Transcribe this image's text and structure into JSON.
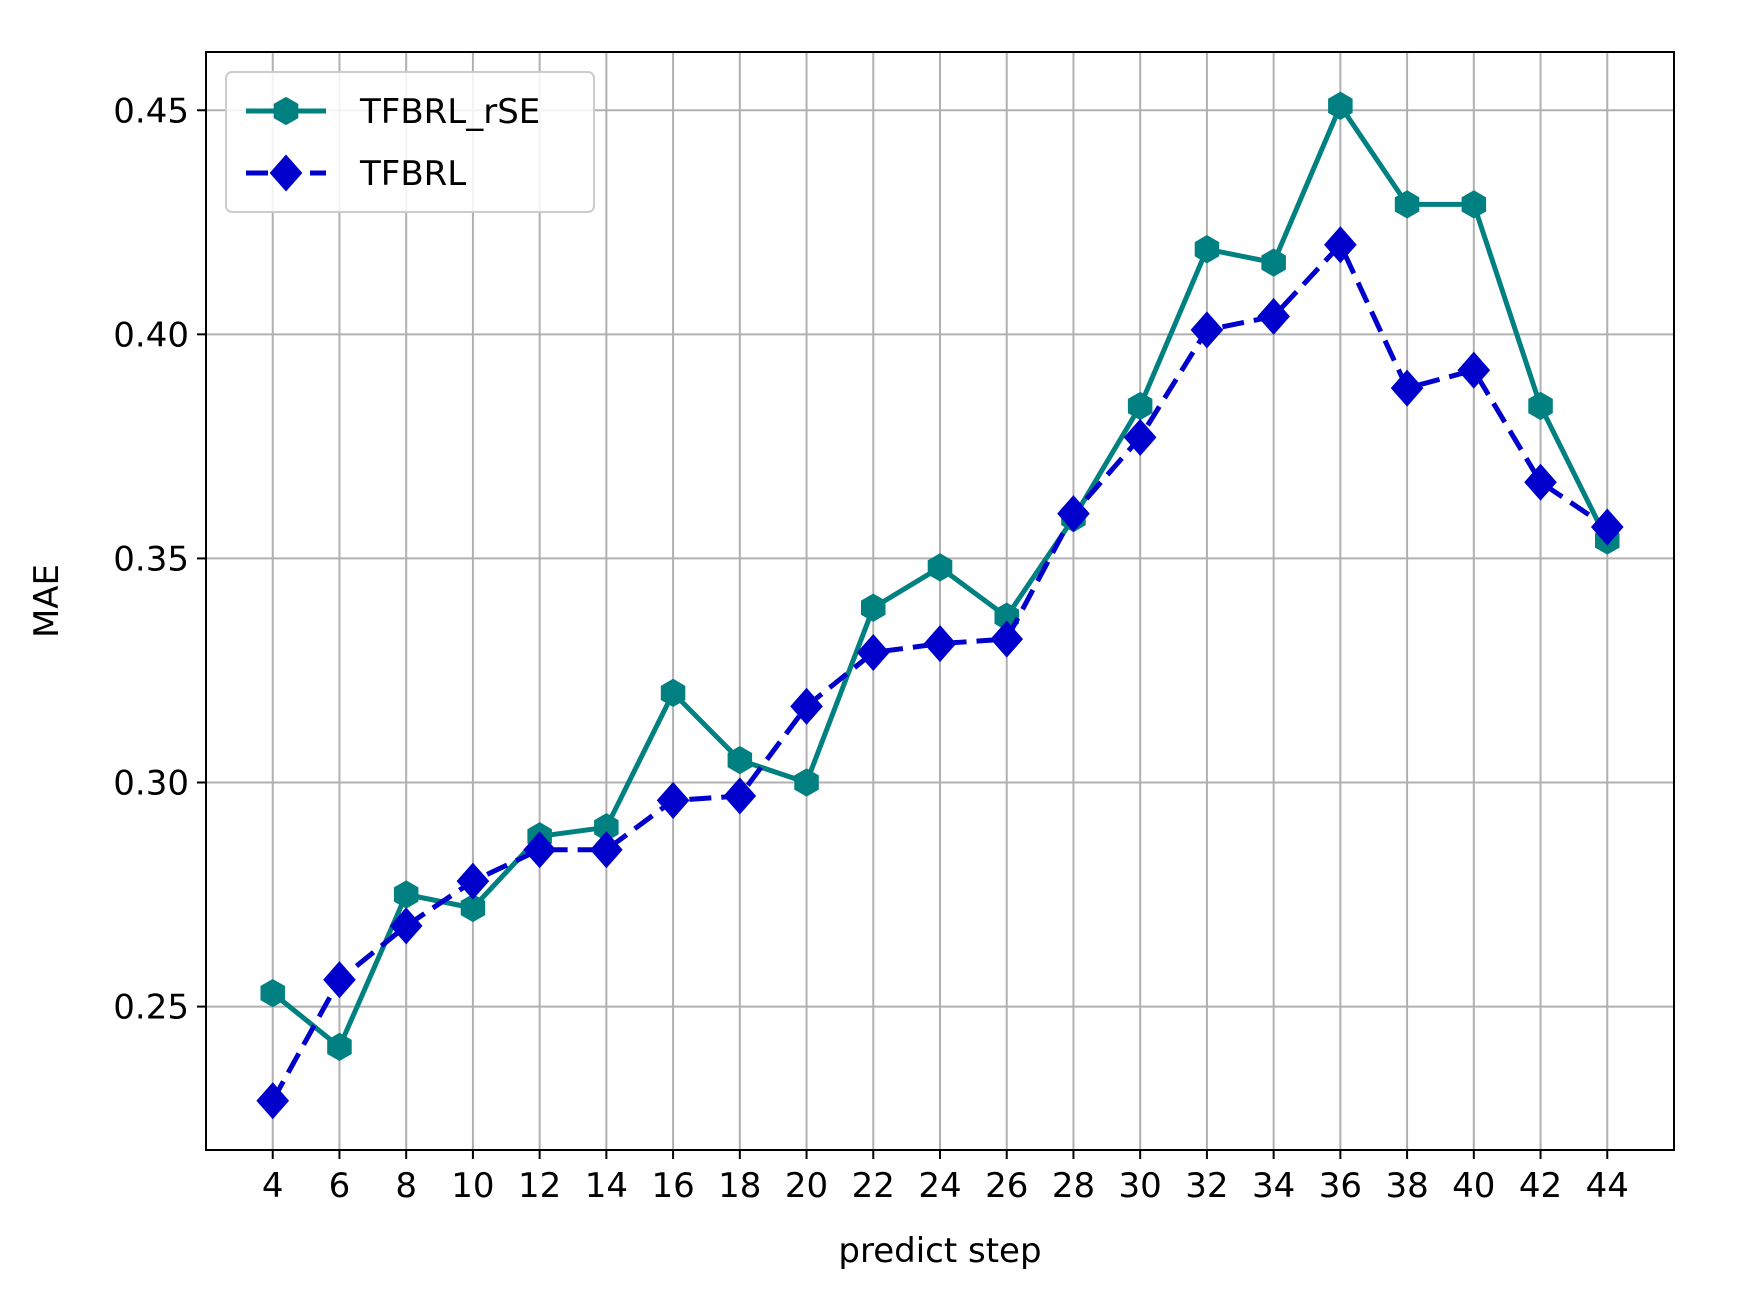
{
  "chart_data": {
    "type": "line",
    "title": "",
    "xlabel": "predict step",
    "ylabel": "MAE",
    "x": [
      4,
      6,
      8,
      10,
      12,
      14,
      16,
      18,
      20,
      22,
      24,
      26,
      28,
      30,
      32,
      34,
      36,
      38,
      40,
      42,
      44
    ],
    "x_tick_labels": [
      "4",
      "6",
      "8",
      "10",
      "12",
      "14",
      "16",
      "18",
      "20",
      "22",
      "24",
      "26",
      "28",
      "30",
      "32",
      "34",
      "36",
      "38",
      "40",
      "42",
      "44"
    ],
    "y_tick_values": [
      0.25,
      0.3,
      0.35,
      0.4,
      0.45
    ],
    "y_tick_labels": [
      "0.25",
      "0.30",
      "0.35",
      "0.40",
      "0.45"
    ],
    "xlim": [
      2,
      46
    ],
    "ylim": [
      0.218,
      0.463
    ],
    "grid": true,
    "legend_position": "upper-left",
    "series": [
      {
        "name": "TFBRL_rSE",
        "color": "#008080",
        "line_style": "solid",
        "marker": "hexagon",
        "values": [
          0.253,
          0.241,
          0.275,
          0.272,
          0.288,
          0.29,
          0.32,
          0.305,
          0.3,
          0.339,
          0.348,
          0.337,
          0.359,
          0.384,
          0.419,
          0.416,
          0.451,
          0.429,
          0.429,
          0.384,
          0.354
        ]
      },
      {
        "name": "TFBRL",
        "color": "#0000cd",
        "line_style": "dashed",
        "marker": "diamond",
        "values": [
          0.229,
          0.256,
          0.268,
          0.278,
          0.285,
          0.285,
          0.296,
          0.297,
          0.317,
          0.329,
          0.331,
          0.332,
          0.36,
          0.377,
          0.401,
          0.404,
          0.42,
          0.388,
          0.392,
          0.367,
          0.357
        ]
      }
    ]
  }
}
